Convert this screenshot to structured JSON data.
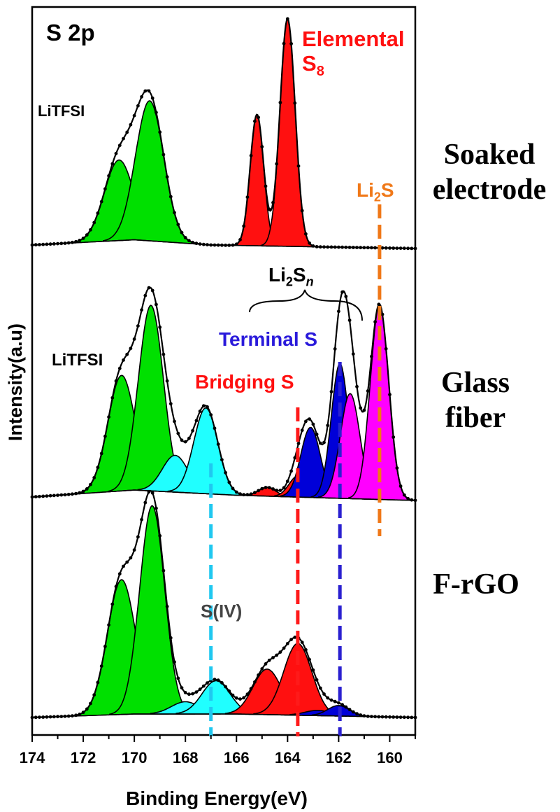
{
  "chart_data": {
    "type": "line",
    "title": "S 2p",
    "xlabel": "Binding Energy(eV)",
    "ylabel": "Intensity(a.u)",
    "xlim": [
      174,
      159
    ],
    "x_reversed": true,
    "xticks": [
      174,
      172,
      170,
      168,
      166,
      164,
      162,
      160
    ],
    "grid": false,
    "colors": {
      "litfsi": "#00e000",
      "elemental": "#ff1010",
      "s_iv": "#20ffff",
      "terminal": "#0000d8",
      "bridging": "#ff1010",
      "li2s": "#ff00ff",
      "line_li2s": "#f07818",
      "line_terminal": "#2a20d0",
      "line_bridging": "#ff1a1a",
      "line_s_iv": "#20c8f0",
      "label_terminal": "#2a1adb",
      "label_bridging": "#ff1010",
      "label_li2s": "#f07818",
      "label_s_iv": "#444444"
    },
    "panels": [
      {
        "name": "Soaked electrode",
        "baseline": [
          [
            174,
            0.02
          ],
          [
            170,
            0.05
          ],
          [
            167,
            0.02
          ],
          [
            159,
            0.0
          ]
        ],
        "peaks": [
          {
            "label": "LiTFSI",
            "center": 170.6,
            "height": 0.46,
            "fwhm": 1.35,
            "color": "litfsi"
          },
          {
            "label": "LiTFSI",
            "center": 169.4,
            "height": 0.8,
            "fwhm": 1.3,
            "color": "litfsi"
          },
          {
            "label": "Elemental S8",
            "center": 165.2,
            "height": 0.75,
            "fwhm": 0.62,
            "color": "elemental"
          },
          {
            "label": "Elemental S8",
            "center": 164.0,
            "height": 1.3,
            "fwhm": 0.7,
            "color": "elemental"
          }
        ]
      },
      {
        "name": "Glass fiber",
        "baseline": [
          [
            174,
            0.02
          ],
          [
            170,
            0.06
          ],
          [
            166,
            0.03
          ],
          [
            159,
            0.0
          ]
        ],
        "peaks": [
          {
            "label": "LiTFSI",
            "center": 170.5,
            "height": 0.66,
            "fwhm": 1.25,
            "color": "litfsi"
          },
          {
            "label": "LiTFSI",
            "center": 169.35,
            "height": 1.06,
            "fwhm": 1.15,
            "color": "litfsi"
          },
          {
            "label": "LiTFSI",
            "center": 168.4,
            "height": 0.21,
            "fwhm": 1.2,
            "color": "s_iv"
          },
          {
            "label": "S(IV)",
            "center": 167.2,
            "height": 0.49,
            "fwhm": 1.1,
            "color": "s_iv"
          },
          {
            "label": "Bridging S",
            "center": 164.8,
            "height": 0.05,
            "fwhm": 0.8,
            "color": "bridging"
          },
          {
            "label": "Bridging S",
            "center": 163.6,
            "height": 0.12,
            "fwhm": 0.8,
            "color": "bridging"
          },
          {
            "label": "Terminal S",
            "center": 163.1,
            "height": 0.4,
            "fwhm": 0.9,
            "color": "terminal"
          },
          {
            "label": "Terminal S",
            "center": 161.95,
            "height": 0.77,
            "fwhm": 0.8,
            "color": "terminal"
          },
          {
            "label": "Li2Sn",
            "center": 161.55,
            "height": 0.6,
            "fwhm": 0.9,
            "color": "li2s"
          },
          {
            "label": "Li2S",
            "center": 160.4,
            "height": 1.11,
            "fwhm": 0.85,
            "color": "li2s"
          }
        ]
      },
      {
        "name": "F-rGO",
        "baseline": [
          [
            174,
            0.0
          ],
          [
            170,
            0.02
          ],
          [
            166,
            0.02
          ],
          [
            159,
            0.0
          ]
        ],
        "peaks": [
          {
            "label": "LiTFSI",
            "center": 170.5,
            "height": 0.77,
            "fwhm": 1.3,
            "color": "litfsi"
          },
          {
            "label": "LiTFSI",
            "center": 169.3,
            "height": 1.19,
            "fwhm": 1.15,
            "color": "litfsi"
          },
          {
            "label": "S(IV)",
            "center": 168.0,
            "height": 0.07,
            "fwhm": 1.3,
            "color": "s_iv"
          },
          {
            "label": "S(IV)",
            "center": 166.8,
            "height": 0.19,
            "fwhm": 1.3,
            "color": "s_iv"
          },
          {
            "label": "Bridging S",
            "center": 164.8,
            "height": 0.26,
            "fwhm": 1.3,
            "color": "bridging"
          },
          {
            "label": "Bridging S",
            "center": 163.6,
            "height": 0.41,
            "fwhm": 1.3,
            "color": "bridging"
          },
          {
            "label": "Terminal S",
            "center": 162.8,
            "height": 0.03,
            "fwhm": 1.2,
            "color": "terminal"
          },
          {
            "label": "Terminal S",
            "center": 162.0,
            "height": 0.06,
            "fwhm": 1.0,
            "color": "terminal"
          }
        ]
      }
    ],
    "reference_lines": [
      {
        "label": "Li2S",
        "x": 160.4,
        "color": "line_li2s"
      },
      {
        "label": "Terminal S",
        "x": 161.95,
        "color": "line_terminal"
      },
      {
        "label": "Bridging S",
        "x": 163.6,
        "color": "line_bridging"
      },
      {
        "label": "S(IV)",
        "x": 167.0,
        "color": "line_s_iv"
      }
    ]
  },
  "labels": {
    "title": "S 2p",
    "elemental_line1": "Elemental",
    "elemental_s": "S",
    "elemental_sub": "8",
    "litfsi_top": "LiTFSI",
    "litfsi_middle": "LiTFSI",
    "li2s_main": "Li",
    "li2s_sub": "2",
    "li2s_s": "S",
    "li2sn_li": "Li",
    "li2sn_sub2": "2",
    "li2sn_s": "S",
    "li2sn_n": "n",
    "terminal_s": "Terminal S",
    "bridging_s": "Bridging S",
    "s_iv": "S(IV)",
    "soaked_line1": "Soaked",
    "soaked_line2": "electrode",
    "glass_line1": "Glass",
    "glass_line2": "fiber",
    "frgo": "F-rGO",
    "xlabel": "Binding Energy(eV)",
    "ylabel": "Intensity(a.u)"
  }
}
